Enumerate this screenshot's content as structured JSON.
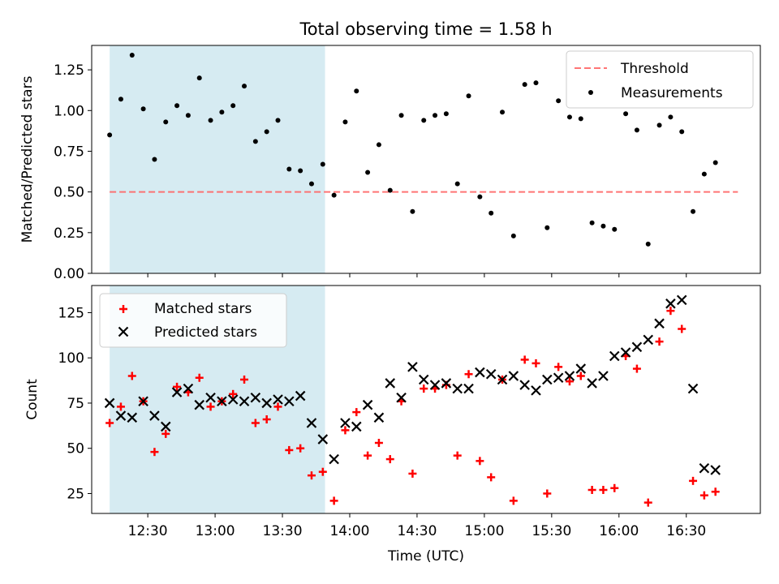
{
  "chart_data": [
    {
      "type": "scatter",
      "title": "Total observing time = 1.58 h",
      "xlabel": "",
      "ylabel": "Matched/Predicted stars",
      "xlim": [
        "12:05",
        "17:03"
      ],
      "ylim": [
        0,
        1.4
      ],
      "yticks": [
        "0.00",
        "0.25",
        "0.50",
        "0.75",
        "1.00",
        "1.25"
      ],
      "shaded_region": {
        "from": "12:13",
        "to": "13:49",
        "color": "#add8e6"
      },
      "threshold": {
        "name": "Threshold",
        "value": 0.5,
        "from": "12:13",
        "to": "16:53",
        "color": "#ff6666"
      },
      "legend": {
        "position": "top-right",
        "entries": [
          "Threshold",
          "Measurements"
        ]
      },
      "series": [
        {
          "name": "Measurements",
          "marker": "dot",
          "color": "#000000",
          "points": [
            [
              "12:13",
              0.85
            ],
            [
              "12:18",
              1.07
            ],
            [
              "12:23",
              1.34
            ],
            [
              "12:28",
              1.01
            ],
            [
              "12:33",
              0.7
            ],
            [
              "12:38",
              0.93
            ],
            [
              "12:43",
              1.03
            ],
            [
              "12:48",
              0.97
            ],
            [
              "12:53",
              1.2
            ],
            [
              "12:58",
              0.94
            ],
            [
              "13:03",
              0.99
            ],
            [
              "13:08",
              1.03
            ],
            [
              "13:13",
              1.15
            ],
            [
              "13:18",
              0.81
            ],
            [
              "13:23",
              0.87
            ],
            [
              "13:28",
              0.94
            ],
            [
              "13:33",
              0.64
            ],
            [
              "13:38",
              0.63
            ],
            [
              "13:43",
              0.55
            ],
            [
              "13:48",
              0.67
            ],
            [
              "13:53",
              0.48
            ],
            [
              "13:58",
              0.93
            ],
            [
              "14:03",
              1.12
            ],
            [
              "14:08",
              0.62
            ],
            [
              "14:13",
              0.79
            ],
            [
              "14:18",
              0.51
            ],
            [
              "14:23",
              0.97
            ],
            [
              "14:28",
              0.38
            ],
            [
              "14:33",
              0.94
            ],
            [
              "14:38",
              0.97
            ],
            [
              "14:43",
              0.98
            ],
            [
              "14:48",
              0.55
            ],
            [
              "14:53",
              1.09
            ],
            [
              "14:58",
              0.47
            ],
            [
              "15:03",
              0.37
            ],
            [
              "15:08",
              0.99
            ],
            [
              "15:13",
              0.23
            ],
            [
              "15:18",
              1.16
            ],
            [
              "15:23",
              1.17
            ],
            [
              "15:28",
              0.28
            ],
            [
              "15:33",
              1.06
            ],
            [
              "15:38",
              0.96
            ],
            [
              "15:43",
              0.95
            ],
            [
              "15:48",
              0.31
            ],
            [
              "15:53",
              0.29
            ],
            [
              "15:58",
              0.27
            ],
            [
              "16:03",
              0.98
            ],
            [
              "16:08",
              0.88
            ],
            [
              "16:13",
              0.18
            ],
            [
              "16:18",
              0.91
            ],
            [
              "16:23",
              0.96
            ],
            [
              "16:28",
              0.87
            ],
            [
              "16:33",
              0.38
            ],
            [
              "16:38",
              0.61
            ],
            [
              "16:43",
              0.68
            ]
          ]
        }
      ]
    },
    {
      "type": "scatter",
      "title": "",
      "xlabel": "Time (UTC)",
      "ylabel": "Count",
      "xlim": [
        "12:05",
        "17:03"
      ],
      "ylim": [
        14,
        140
      ],
      "xticks": [
        "12:30",
        "13:00",
        "13:30",
        "14:00",
        "14:30",
        "15:00",
        "15:30",
        "16:00",
        "16:30"
      ],
      "yticks": [
        "25",
        "50",
        "75",
        "100",
        "125"
      ],
      "shaded_region": {
        "from": "12:13",
        "to": "13:49",
        "color": "#add8e6"
      },
      "legend": {
        "position": "top-left",
        "entries": [
          "Matched stars",
          "Predicted stars"
        ]
      },
      "series": [
        {
          "name": "Matched stars",
          "marker": "plus",
          "color": "#ff0000",
          "points": [
            [
              "12:13",
              64
            ],
            [
              "12:18",
              73
            ],
            [
              "12:23",
              90
            ],
            [
              "12:28",
              76
            ],
            [
              "12:33",
              48
            ],
            [
              "12:38",
              58
            ],
            [
              "12:43",
              84
            ],
            [
              "12:48",
              81
            ],
            [
              "12:53",
              89
            ],
            [
              "12:58",
              73
            ],
            [
              "13:03",
              76
            ],
            [
              "13:08",
              80
            ],
            [
              "13:13",
              88
            ],
            [
              "13:18",
              64
            ],
            [
              "13:23",
              66
            ],
            [
              "13:28",
              73
            ],
            [
              "13:33",
              49
            ],
            [
              "13:38",
              50
            ],
            [
              "13:43",
              35
            ],
            [
              "13:48",
              37
            ],
            [
              "13:53",
              21
            ],
            [
              "13:58",
              60
            ],
            [
              "14:03",
              70
            ],
            [
              "14:08",
              46
            ],
            [
              "14:13",
              53
            ],
            [
              "14:18",
              44
            ],
            [
              "14:23",
              76
            ],
            [
              "14:28",
              36
            ],
            [
              "14:33",
              83
            ],
            [
              "14:38",
              83
            ],
            [
              "14:43",
              85
            ],
            [
              "14:48",
              46
            ],
            [
              "14:53",
              91
            ],
            [
              "14:58",
              43
            ],
            [
              "15:03",
              34
            ],
            [
              "15:08",
              88
            ],
            [
              "15:13",
              21
            ],
            [
              "15:18",
              99
            ],
            [
              "15:23",
              97
            ],
            [
              "15:28",
              25
            ],
            [
              "15:33",
              95
            ],
            [
              "15:38",
              87
            ],
            [
              "15:43",
              90
            ],
            [
              "15:48",
              27
            ],
            [
              "15:53",
              27
            ],
            [
              "15:58",
              28
            ],
            [
              "16:03",
              101
            ],
            [
              "16:08",
              94
            ],
            [
              "16:13",
              20
            ],
            [
              "16:18",
              109
            ],
            [
              "16:23",
              126
            ],
            [
              "16:28",
              116
            ],
            [
              "16:33",
              32
            ],
            [
              "16:38",
              24
            ],
            [
              "16:43",
              26
            ]
          ]
        },
        {
          "name": "Predicted stars",
          "marker": "x",
          "color": "#000000",
          "points": [
            [
              "12:13",
              75
            ],
            [
              "12:18",
              68
            ],
            [
              "12:23",
              67
            ],
            [
              "12:28",
              76
            ],
            [
              "12:33",
              68
            ],
            [
              "12:38",
              62
            ],
            [
              "12:43",
              81
            ],
            [
              "12:48",
              83
            ],
            [
              "12:53",
              74
            ],
            [
              "12:58",
              78
            ],
            [
              "13:03",
              76
            ],
            [
              "13:08",
              77
            ],
            [
              "13:13",
              76
            ],
            [
              "13:18",
              78
            ],
            [
              "13:23",
              75
            ],
            [
              "13:28",
              77
            ],
            [
              "13:33",
              76
            ],
            [
              "13:38",
              79
            ],
            [
              "13:43",
              64
            ],
            [
              "13:48",
              55
            ],
            [
              "13:53",
              44
            ],
            [
              "13:58",
              64
            ],
            [
              "14:03",
              62
            ],
            [
              "14:08",
              74
            ],
            [
              "14:13",
              67
            ],
            [
              "14:18",
              86
            ],
            [
              "14:23",
              78
            ],
            [
              "14:28",
              95
            ],
            [
              "14:33",
              88
            ],
            [
              "14:38",
              85
            ],
            [
              "14:43",
              86
            ],
            [
              "14:48",
              83
            ],
            [
              "14:53",
              83
            ],
            [
              "14:58",
              92
            ],
            [
              "15:03",
              91
            ],
            [
              "15:08",
              88
            ],
            [
              "15:13",
              90
            ],
            [
              "15:18",
              85
            ],
            [
              "15:23",
              82
            ],
            [
              "15:28",
              88
            ],
            [
              "15:33",
              89
            ],
            [
              "15:38",
              90
            ],
            [
              "15:43",
              94
            ],
            [
              "15:48",
              86
            ],
            [
              "15:53",
              90
            ],
            [
              "15:58",
              101
            ],
            [
              "16:03",
              103
            ],
            [
              "16:08",
              106
            ],
            [
              "16:13",
              110
            ],
            [
              "16:18",
              119
            ],
            [
              "16:23",
              130
            ],
            [
              "16:28",
              132
            ],
            [
              "16:33",
              83
            ],
            [
              "16:38",
              39
            ],
            [
              "16:43",
              38
            ]
          ]
        }
      ]
    }
  ]
}
